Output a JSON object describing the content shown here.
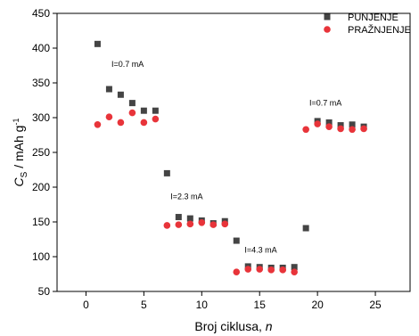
{
  "chart_data": {
    "type": "scatter",
    "title": "",
    "xlabel_main": "Broj ciklusa, ",
    "xlabel_var": "n",
    "ylabel_main": "C",
    "ylabel_sub": "S",
    "ylabel_rest": " / mAh g",
    "ylabel_sup": "-1",
    "xlim": [
      -2.5,
      28
    ],
    "ylim": [
      50,
      450
    ],
    "xticks": [
      0,
      5,
      10,
      15,
      20,
      25
    ],
    "yticks": [
      50,
      100,
      150,
      200,
      250,
      300,
      350,
      400,
      450
    ],
    "legend_position": "top-right",
    "grid": false,
    "series": [
      {
        "name": "PUNJENJE",
        "marker": "square",
        "color": "#444444",
        "points": [
          [
            1,
            406
          ],
          [
            2,
            341
          ],
          [
            3,
            333
          ],
          [
            4,
            321
          ],
          [
            5,
            310
          ],
          [
            6,
            310
          ],
          [
            7,
            220
          ],
          [
            8,
            157
          ],
          [
            9,
            155
          ],
          [
            10,
            152
          ],
          [
            11,
            148
          ],
          [
            12,
            151
          ],
          [
            13,
            123
          ],
          [
            14,
            86
          ],
          [
            15,
            85
          ],
          [
            16,
            84
          ],
          [
            17,
            84
          ],
          [
            18,
            85
          ],
          [
            19,
            141
          ],
          [
            20,
            295
          ],
          [
            21,
            293
          ],
          [
            22,
            289
          ],
          [
            23,
            290
          ],
          [
            24,
            287
          ]
        ]
      },
      {
        "name": "PRAŽNJENJE",
        "marker": "circle",
        "color": "#e8343a",
        "points": [
          [
            1,
            290
          ],
          [
            2,
            301
          ],
          [
            3,
            293
          ],
          [
            4,
            307
          ],
          [
            5,
            293
          ],
          [
            6,
            298
          ],
          [
            7,
            145
          ],
          [
            8,
            146
          ],
          [
            9,
            147
          ],
          [
            10,
            149
          ],
          [
            11,
            146
          ],
          [
            12,
            147
          ],
          [
            13,
            78
          ],
          [
            14,
            82
          ],
          [
            15,
            82
          ],
          [
            16,
            81
          ],
          [
            17,
            81
          ],
          [
            18,
            78
          ],
          [
            19,
            283
          ],
          [
            20,
            291
          ],
          [
            21,
            287
          ],
          [
            22,
            284
          ],
          [
            23,
            283
          ],
          [
            24,
            284
          ]
        ]
      }
    ],
    "annotations": [
      {
        "text": "I=0.7 mA",
        "x": 2.2,
        "y": 373
      },
      {
        "text": "I=2.3 mA",
        "x": 7.3,
        "y": 183
      },
      {
        "text": "I=4.3 mA",
        "x": 13.7,
        "y": 106
      },
      {
        "text": "I=0.7 mA",
        "x": 19.3,
        "y": 317
      }
    ]
  }
}
